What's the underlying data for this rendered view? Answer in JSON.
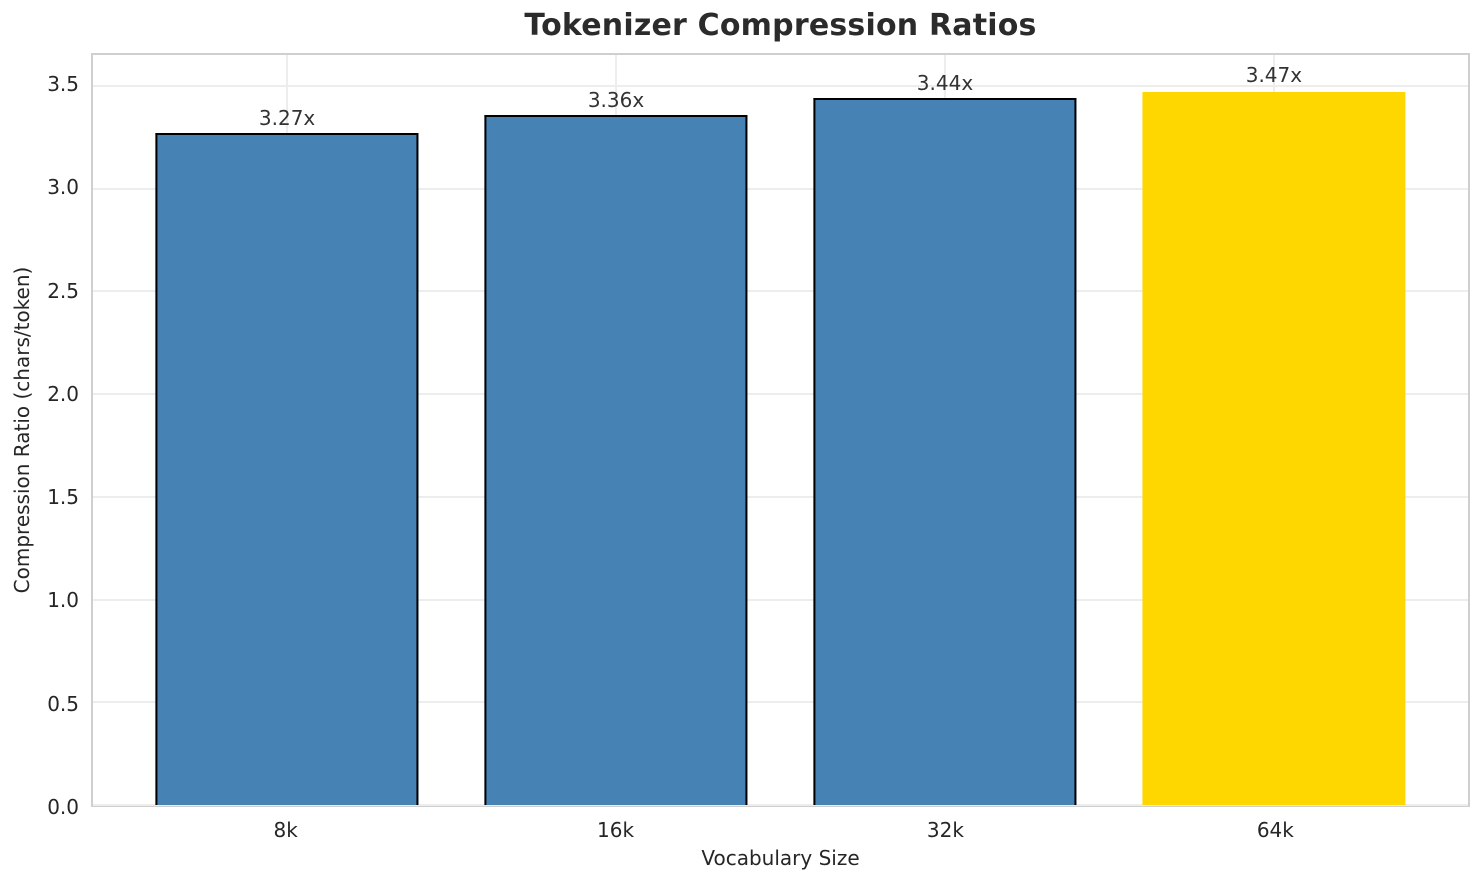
{
  "chart_data": {
    "type": "bar",
    "title": "Tokenizer Compression Ratios",
    "xlabel": "Vocabulary Size",
    "ylabel": "Compression Ratio (chars/token)",
    "categories": [
      "8k",
      "16k",
      "32k",
      "64k"
    ],
    "values": [
      3.27,
      3.36,
      3.44,
      3.47
    ],
    "bar_labels": [
      "3.27x",
      "3.36x",
      "3.44x",
      "3.47x"
    ],
    "ylim": [
      0,
      3.65
    ],
    "yticks": [
      0.0,
      0.5,
      1.0,
      1.5,
      2.0,
      2.5,
      3.0,
      3.5
    ],
    "ytick_labels": [
      "0.0",
      "0.5",
      "1.0",
      "1.5",
      "2.0",
      "2.5",
      "3.0",
      "3.5"
    ],
    "grid": "on",
    "legend_position": "none",
    "bar_color": "#4682b4",
    "bar_edge_color": "#000000",
    "highlight_index": 3,
    "highlight_color": "#ffd700",
    "grid_color": "#ededed",
    "spine_color": "#cfcfcf",
    "title_color": "#2b2b2b",
    "text_color": "#262626"
  }
}
